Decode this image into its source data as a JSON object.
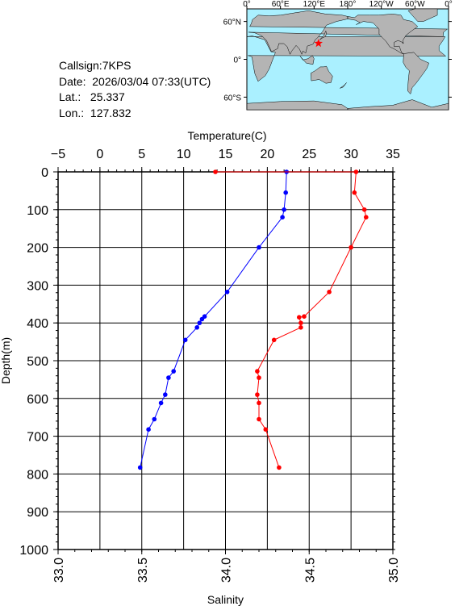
{
  "station": {
    "callsign_label": "Callsign:",
    "callsign": "7KPS",
    "date_label": "Date:",
    "date": "2026/03/04 07:33(UTC)",
    "lat_label": "Lat.:",
    "lat": "25.337",
    "lon_label": "Lon.:",
    "lon": "127.832"
  },
  "map": {
    "top_labels": [
      "0°",
      "60°E",
      "120°E",
      "180°",
      "120°W",
      "60°W",
      "0°"
    ],
    "lat_labels": [
      "60°N",
      "0°",
      "60°S"
    ],
    "marker_color": "#ff0000",
    "ocean_color": "#aaf0ff",
    "land_color": "#b4b4b4"
  },
  "chart_data": {
    "type": "line",
    "y_axis": {
      "label": "Depth(m)",
      "range": [
        1000,
        0
      ],
      "ticks": [
        "0",
        "100",
        "200",
        "300",
        "400",
        "500",
        "600",
        "700",
        "800",
        "900",
        "1000"
      ]
    },
    "top_axis": {
      "label": "Temperature(C)",
      "range": [
        -5,
        35
      ],
      "ticks": [
        "-5",
        "0",
        "5",
        "10",
        "15",
        "20",
        "25",
        "30",
        "35"
      ]
    },
    "bottom_axis": {
      "label": "Salinity",
      "range": [
        33.0,
        35.0
      ],
      "ticks": [
        "33.0",
        "33.5",
        "34.0",
        "34.5",
        "35.0"
      ]
    },
    "grid": true,
    "series": [
      {
        "quantity": "temperature",
        "axis": "top",
        "color": "#0000ff",
        "points": [
          [
            22.3,
            0
          ],
          [
            22.2,
            55
          ],
          [
            22.0,
            100
          ],
          [
            21.8,
            120
          ],
          [
            19.0,
            200
          ],
          [
            15.2,
            318
          ],
          [
            12.5,
            383
          ],
          [
            12.2,
            390
          ],
          [
            11.9,
            400
          ],
          [
            11.6,
            412
          ],
          [
            10.2,
            445
          ],
          [
            8.8,
            528
          ],
          [
            8.2,
            545
          ],
          [
            7.8,
            590
          ],
          [
            7.3,
            612
          ],
          [
            6.5,
            655
          ],
          [
            5.8,
            682
          ],
          [
            4.8,
            783
          ]
        ]
      },
      {
        "quantity": "salinity",
        "axis": "bottom",
        "color": "#ff0000",
        "points": [
          [
            33.94,
            0
          ],
          [
            34.78,
            0
          ],
          [
            34.77,
            55
          ],
          [
            34.83,
            100
          ],
          [
            34.84,
            120
          ],
          [
            34.75,
            200
          ],
          [
            34.62,
            318
          ],
          [
            34.47,
            383
          ],
          [
            34.44,
            385
          ],
          [
            34.45,
            400
          ],
          [
            34.45,
            412
          ],
          [
            34.29,
            445
          ],
          [
            34.19,
            528
          ],
          [
            34.2,
            545
          ],
          [
            34.19,
            590
          ],
          [
            34.2,
            612
          ],
          [
            34.2,
            655
          ],
          [
            34.24,
            682
          ],
          [
            34.32,
            783
          ]
        ]
      }
    ]
  }
}
